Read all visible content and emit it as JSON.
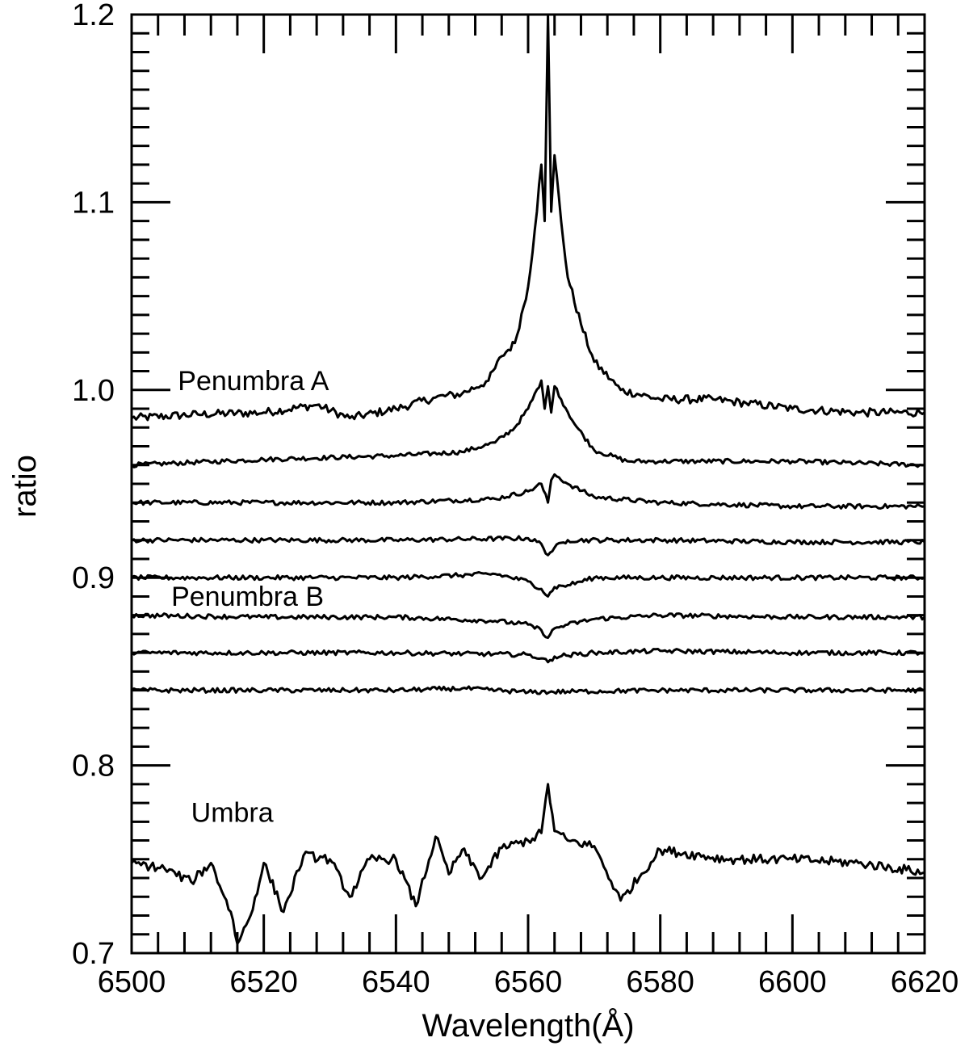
{
  "chart_data": {
    "type": "line",
    "xlabel": "Wavelength(Å)",
    "ylabel": "ratio",
    "xlim": [
      6500,
      6620
    ],
    "ylim": [
      0.7,
      1.2
    ],
    "xticks": [
      6500,
      6520,
      6540,
      6560,
      6580,
      6600,
      6620
    ],
    "xtick_labels": [
      "6500",
      "6520",
      "6540",
      "6560",
      "6580",
      "6600",
      "6620"
    ],
    "yticks": [
      0.7,
      0.8,
      0.9,
      1.0,
      1.1,
      1.2
    ],
    "ytick_labels": [
      "0.7",
      "0.8",
      "0.9",
      "1.0",
      "1.1",
      "1.2"
    ],
    "grid": false,
    "annotations": [
      {
        "text": "Penumbra A",
        "x": 6507,
        "y": 1.0
      },
      {
        "text": "Penumbra B",
        "x": 6506,
        "y": 0.885
      },
      {
        "text": "Umbra",
        "x": 6509,
        "y": 0.77
      }
    ],
    "series": [
      {
        "x": [
          6500,
          6510,
          6520,
          6528,
          6533,
          6540,
          6546,
          6550,
          6554,
          6556,
          6558,
          6560,
          6561,
          6562,
          6562.5,
          6563,
          6563.5,
          6564,
          6565,
          6566,
          6568,
          6570,
          6574,
          6580,
          6588,
          6593,
          6600,
          6610,
          6620
        ],
        "values": [
          0.985,
          0.987,
          0.988,
          0.992,
          0.985,
          0.99,
          0.996,
          0.998,
          1.005,
          1.018,
          1.025,
          1.055,
          1.085,
          1.12,
          1.09,
          1.2,
          1.095,
          1.125,
          1.09,
          1.06,
          1.035,
          1.015,
          1.0,
          0.995,
          0.995,
          0.993,
          0.99,
          0.988,
          0.988
        ]
      },
      {
        "x": [
          6500,
          6520,
          6540,
          6550,
          6555,
          6558,
          6560,
          6562,
          6562.5,
          6563,
          6563.5,
          6564,
          6565,
          6567,
          6570,
          6575,
          6580,
          6600,
          6620
        ],
        "values": [
          0.96,
          0.963,
          0.965,
          0.967,
          0.972,
          0.98,
          0.99,
          1.005,
          0.99,
          1.002,
          0.988,
          1.002,
          0.995,
          0.982,
          0.968,
          0.962,
          0.962,
          0.962,
          0.96
        ]
      },
      {
        "x": [
          6500,
          6520,
          6540,
          6555,
          6560,
          6562,
          6563,
          6563.5,
          6564,
          6566,
          6570,
          6580,
          6600,
          6620
        ],
        "values": [
          0.94,
          0.94,
          0.94,
          0.942,
          0.946,
          0.95,
          0.94,
          0.952,
          0.955,
          0.95,
          0.943,
          0.94,
          0.938,
          0.938
        ]
      },
      {
        "x": [
          6500,
          6520,
          6540,
          6560,
          6562,
          6563,
          6564,
          6566,
          6580,
          6600,
          6620
        ],
        "values": [
          0.92,
          0.92,
          0.92,
          0.921,
          0.918,
          0.912,
          0.916,
          0.92,
          0.92,
          0.919,
          0.919
        ]
      },
      {
        "x": [
          6500,
          6520,
          6540,
          6555,
          6560,
          6562,
          6563,
          6564,
          6566,
          6570,
          6580,
          6600,
          6620
        ],
        "values": [
          0.9,
          0.9,
          0.9,
          0.902,
          0.898,
          0.894,
          0.89,
          0.895,
          0.896,
          0.9,
          0.9,
          0.9,
          0.9
        ]
      },
      {
        "x": [
          6500,
          6520,
          6540,
          6555,
          6560,
          6562,
          6563,
          6564,
          6566,
          6570,
          6580,
          6600,
          6620
        ],
        "values": [
          0.88,
          0.879,
          0.879,
          0.877,
          0.875,
          0.872,
          0.868,
          0.873,
          0.875,
          0.878,
          0.88,
          0.879,
          0.879
        ]
      },
      {
        "x": [
          6500,
          6520,
          6540,
          6560,
          6562,
          6563,
          6564,
          6570,
          6580,
          6600,
          6620
        ],
        "values": [
          0.86,
          0.86,
          0.86,
          0.859,
          0.857,
          0.855,
          0.858,
          0.86,
          0.861,
          0.86,
          0.86
        ]
      },
      {
        "x": [
          6500,
          6520,
          6540,
          6550,
          6560,
          6580,
          6600,
          6620
        ],
        "values": [
          0.84,
          0.84,
          0.84,
          0.841,
          0.839,
          0.84,
          0.84,
          0.84
        ]
      },
      {
        "x": [
          6500,
          6505,
          6509,
          6512,
          6515,
          6516,
          6518,
          6520,
          6523,
          6526,
          6530,
          6533,
          6536,
          6540,
          6543,
          6546,
          6548,
          6550,
          6553,
          6556,
          6560,
          6562,
          6563,
          6564,
          6566,
          6570,
          6574,
          6580,
          6590,
          6600,
          6610,
          6620
        ],
        "values": [
          0.748,
          0.745,
          0.738,
          0.748,
          0.722,
          0.705,
          0.72,
          0.748,
          0.722,
          0.752,
          0.75,
          0.73,
          0.75,
          0.75,
          0.725,
          0.762,
          0.742,
          0.755,
          0.74,
          0.756,
          0.76,
          0.764,
          0.79,
          0.765,
          0.76,
          0.757,
          0.728,
          0.755,
          0.75,
          0.75,
          0.748,
          0.743
        ]
      }
    ]
  }
}
